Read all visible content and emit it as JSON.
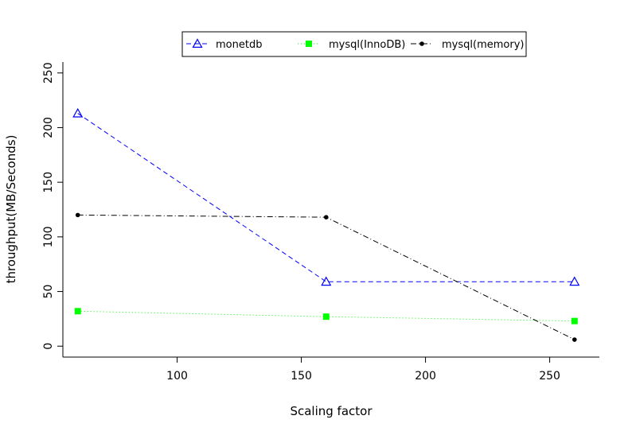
{
  "chart_data": {
    "type": "line",
    "title": "",
    "xlabel": "Scaling factor",
    "ylabel": "throughput(MB/Seconds)",
    "x": [
      60,
      160,
      260
    ],
    "xlim": [
      54,
      270
    ],
    "ylim": [
      -10,
      260
    ],
    "xticks": [
      100,
      150,
      200,
      250
    ],
    "yticks": [
      0,
      50,
      100,
      150,
      200,
      250
    ],
    "grid": false,
    "legend_position": "top",
    "series": [
      {
        "name": "monetdb",
        "values": [
          213,
          59,
          59
        ],
        "color": "#0000ff",
        "marker": "open-triangle",
        "dash": "6,4"
      },
      {
        "name": "mysql(InnoDB)",
        "values": [
          32,
          27,
          23
        ],
        "color": "#00ff00",
        "marker": "filled-square",
        "dash": "1,3"
      },
      {
        "name": "mysql(memory)",
        "values": [
          120,
          118,
          6
        ],
        "color": "#000000",
        "marker": "filled-circle",
        "dash": "7,3,1,3"
      }
    ]
  }
}
